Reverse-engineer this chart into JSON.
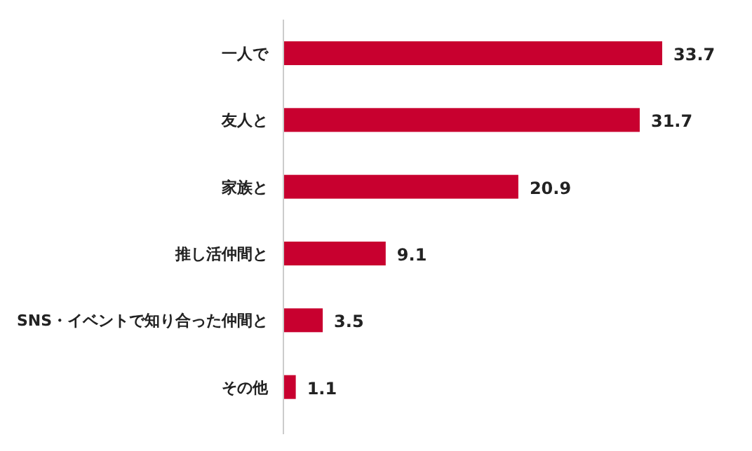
{
  "chart_data": {
    "type": "bar",
    "orientation": "horizontal",
    "categories": [
      "一人で",
      "友人と",
      "家族と",
      "推し活仲間と",
      "SNS・イベントで知り合った仲間と",
      "その他"
    ],
    "values": [
      33.7,
      31.7,
      20.9,
      9.1,
      3.5,
      1.1
    ],
    "color": "#c8002f",
    "data_labels": true
  }
}
